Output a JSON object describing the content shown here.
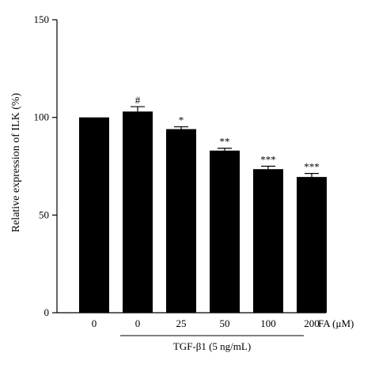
{
  "chart_data": {
    "type": "bar",
    "categories": [
      "0",
      "0",
      "25",
      "50",
      "100",
      "200"
    ],
    "values": [
      100,
      103,
      94,
      83,
      73.5,
      69.5
    ],
    "errors": [
      0,
      2.5,
      1.2,
      1.2,
      1.5,
      1.8
    ],
    "significance": [
      "",
      "#",
      "*",
      "**",
      "***",
      "***"
    ],
    "ylabel": "Relative expression of ILK (%)",
    "xunit_label": "FA (μM)",
    "group_label": "TGF-β1 (5 ng/mL)",
    "ylim": [
      0,
      150
    ],
    "yticks": [
      0,
      50,
      100,
      150
    ],
    "bar_color": "#000000",
    "grid": false,
    "legend": "none"
  }
}
